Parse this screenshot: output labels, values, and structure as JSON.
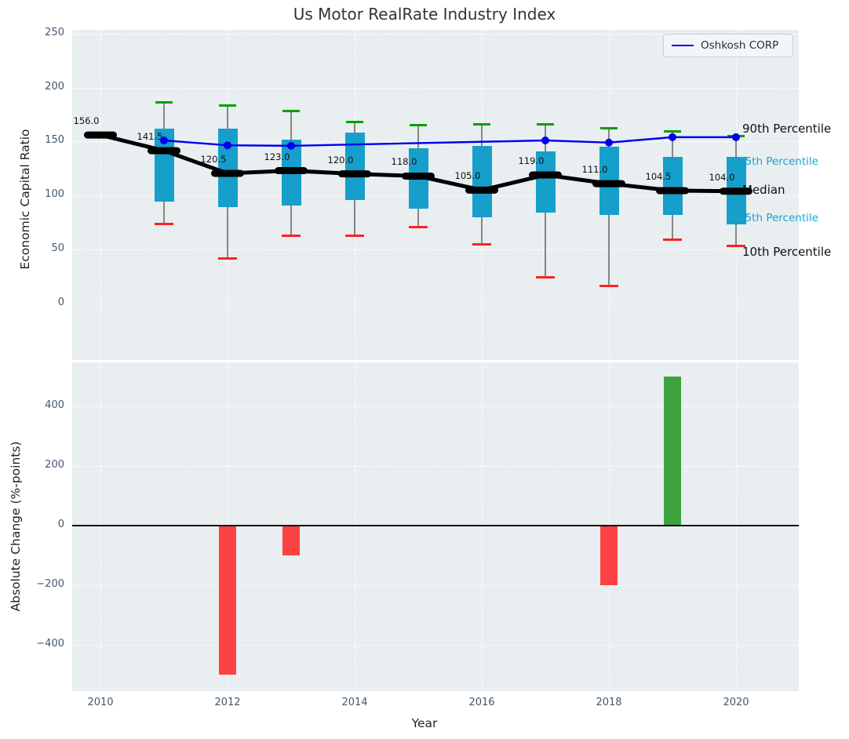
{
  "title": "Us Motor RealRate Industry Index",
  "legend": {
    "label": "Oshkosh CORP"
  },
  "colors": {
    "panel_bg": "#e9eef0",
    "box_fill": "#179fcb",
    "oshkosh_line": "#0000ee",
    "median_color": "#000000",
    "whisker_cap_top": "#00a000",
    "whisker_cap_bottom": "#ff2222",
    "bar_negative": "#fb4343",
    "bar_positive": "#3da33d",
    "tick_label": "#44566b",
    "annotation_cyan": "#1aa2d5"
  },
  "chart_data": [
    {
      "type": "boxplot+line",
      "title": "Us Motor RealRate Industry Index",
      "ylabel": "Economic Capital Ratio",
      "ylim": [
        -51,
        253
      ],
      "yticks": [
        0,
        50,
        100,
        150,
        200,
        250
      ],
      "ytick_labels": [
        "0",
        "50",
        "100",
        "150",
        "200",
        "250"
      ],
      "xticks": [
        2010,
        2012,
        2014,
        2016,
        2018,
        2020
      ],
      "grid": true,
      "legend_position": "upper right",
      "boxes": [
        {
          "year": 2010,
          "median": 156.0,
          "label": "156.0"
        },
        {
          "year": 2011,
          "whisker_low": 74,
          "q1": 94,
          "median": 141.5,
          "q3": 162,
          "whisker_high": 186,
          "label": "141.5"
        },
        {
          "year": 2012,
          "whisker_low": 42,
          "q1": 89,
          "median": 120.5,
          "q3": 162,
          "whisker_high": 183,
          "label": "120.5"
        },
        {
          "year": 2013,
          "whisker_low": 63,
          "q1": 91,
          "median": 123.0,
          "q3": 152,
          "whisker_high": 178,
          "label": "123.0"
        },
        {
          "year": 2014,
          "whisker_low": 63,
          "q1": 96,
          "median": 120.0,
          "q3": 158,
          "whisker_high": 168,
          "label": "120.0"
        },
        {
          "year": 2015,
          "whisker_low": 71,
          "q1": 88,
          "median": 118.0,
          "q3": 144,
          "whisker_high": 165,
          "label": "118.0"
        },
        {
          "year": 2016,
          "whisker_low": 55,
          "q1": 80,
          "median": 105.0,
          "q3": 146,
          "whisker_high": 166,
          "label": "105.0"
        },
        {
          "year": 2017,
          "whisker_low": 24,
          "q1": 84,
          "median": 119.0,
          "q3": 141,
          "whisker_high": 166,
          "label": "119.0"
        },
        {
          "year": 2018,
          "whisker_low": 16,
          "q1": 82,
          "median": 111.0,
          "q3": 145,
          "whisker_high": 162,
          "label": "111.0"
        },
        {
          "year": 2019,
          "whisker_low": 59,
          "q1": 82,
          "median": 104.5,
          "q3": 136,
          "whisker_high": 159,
          "label": "104.5"
        },
        {
          "year": 2020,
          "whisker_low": 53,
          "q1": 73,
          "median": 104.0,
          "q3": 136,
          "whisker_high": 155,
          "label": "104.0"
        }
      ],
      "line_series": {
        "name": "Oshkosh CORP",
        "points": [
          [
            2011,
            151
          ],
          [
            2012,
            146.5
          ],
          [
            2013,
            146
          ],
          [
            2017,
            151
          ],
          [
            2018,
            149
          ],
          [
            2019,
            154
          ],
          [
            2020,
            154
          ]
        ]
      },
      "annotations": [
        {
          "text": "90th Percentile",
          "value": 161,
          "style": "black"
        },
        {
          "text": "75th Percentile",
          "value": 130.5,
          "style": "cyan"
        },
        {
          "text": "Median",
          "value": 104.3,
          "style": "black"
        },
        {
          "text": "25th Percentile",
          "value": 78.5,
          "style": "cyan"
        },
        {
          "text": "10th Percentile",
          "value": 47,
          "style": "black"
        }
      ]
    },
    {
      "type": "bar",
      "ylabel": "Absolute Change (%-points)",
      "xlabel": "Year",
      "ylim": [
        -560,
        545
      ],
      "yticks": [
        -400,
        -200,
        0,
        200,
        400
      ],
      "ytick_labels": [
        "−400",
        "−200",
        "0",
        "200",
        "400"
      ],
      "xticks": [
        2010,
        2012,
        2014,
        2016,
        2018,
        2020
      ],
      "xtick_labels": [
        "2010",
        "2012",
        "2014",
        "2016",
        "2018",
        "2020"
      ],
      "grid": true,
      "bars": [
        {
          "year": 2012,
          "value": -500
        },
        {
          "year": 2013,
          "value": -100
        },
        {
          "year": 2018,
          "value": -200
        },
        {
          "year": 2019,
          "value": 500
        }
      ]
    }
  ]
}
